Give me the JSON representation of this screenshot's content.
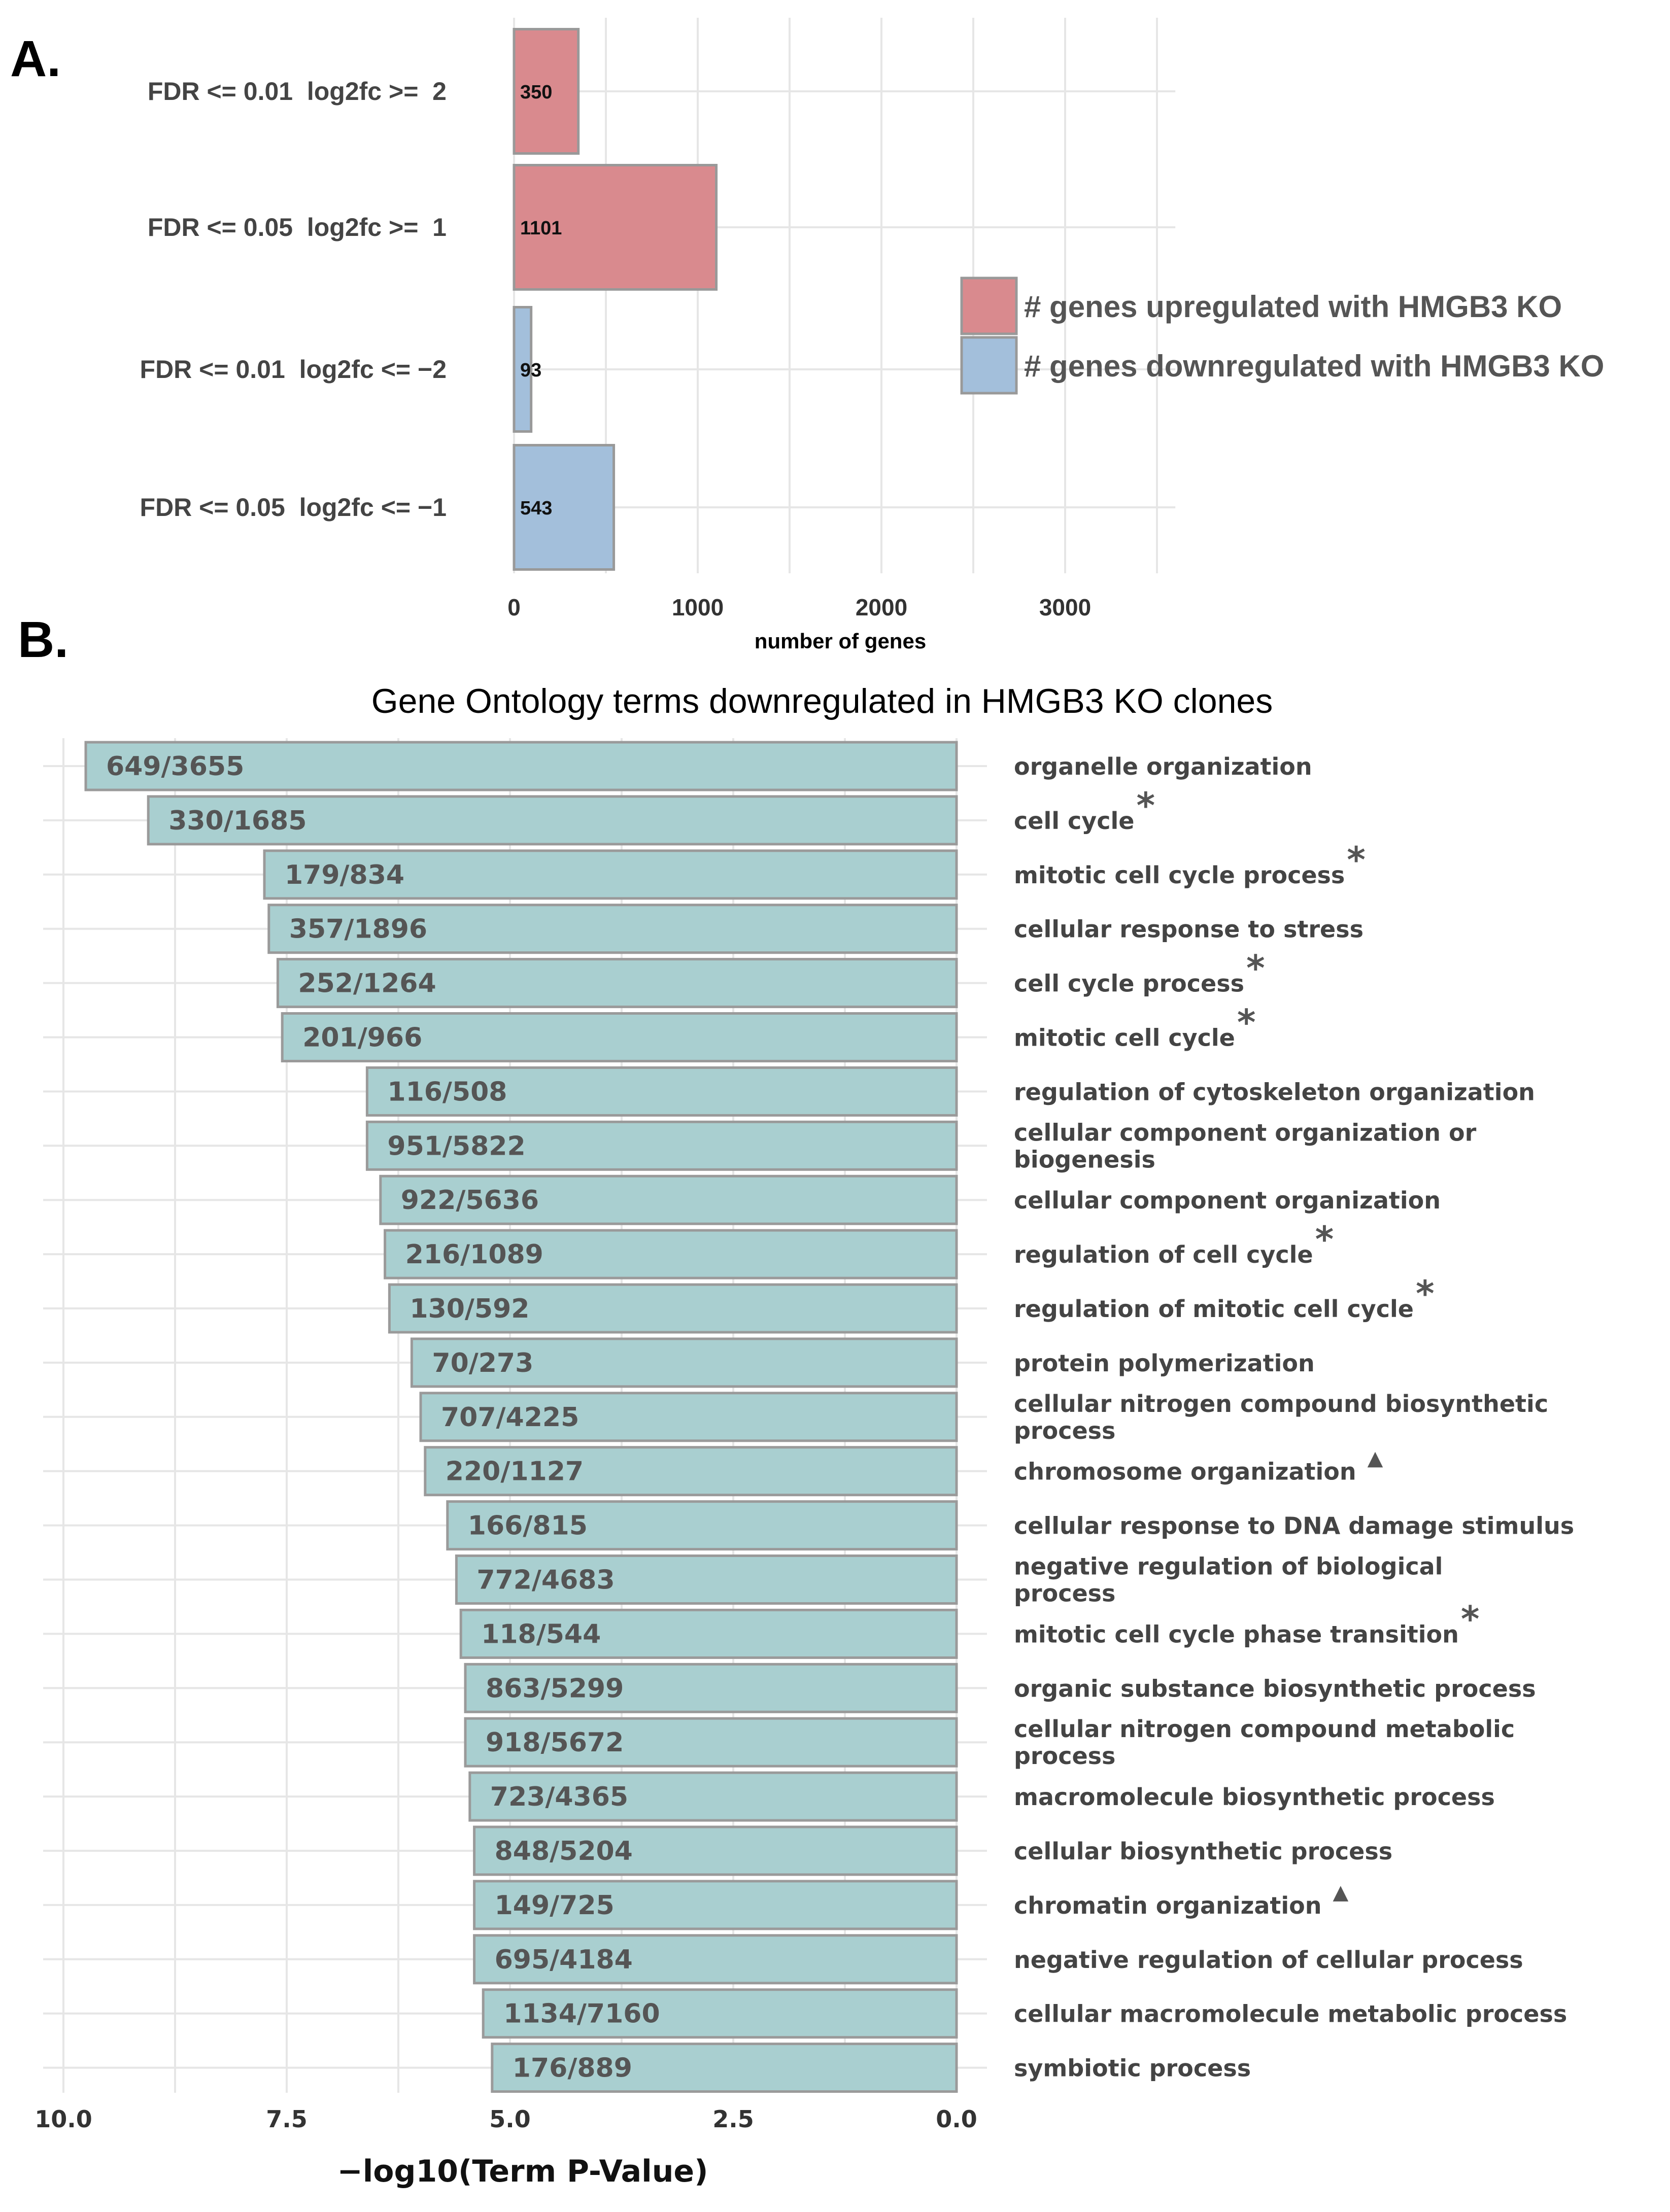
{
  "chart_data": [
    {
      "panel": "A.",
      "type": "bar",
      "orientation": "horizontal",
      "categories": [
        "FDR <= 0.01  log2fc >=  2",
        "FDR <= 0.05  log2fc >=  1",
        "FDR <= 0.01  log2fc <= −2",
        "FDR <= 0.05  log2fc <= −1"
      ],
      "values": [
        350,
        1101,
        93,
        543
      ],
      "bar_labels": [
        "350",
        "1101",
        "93",
        "543"
      ],
      "groups": [
        "up",
        "up",
        "down",
        "down"
      ],
      "xlabel": "number of genes",
      "xlim": [
        0,
        3600
      ],
      "xticks": [
        0,
        1000,
        2000,
        3000
      ],
      "xtick_labels": [
        "0",
        "1000",
        "2000",
        "3000"
      ],
      "legend": {
        "position": "right",
        "entries": [
          {
            "key": "up",
            "label": "# genes upregulated with HMGB3 KO",
            "color": "#d98a8e"
          },
          {
            "key": "down",
            "label": "# genes downregulated with HMGB3 KO",
            "color": "#a3bfdb"
          }
        ]
      }
    },
    {
      "panel": "B.",
      "type": "bar",
      "orientation": "horizontal",
      "title": "Gene Ontology terms downregulated in HMGB3 KO clones",
      "xlabel": "−log10(Term P-Value)",
      "xlim": [
        10.0,
        0.0
      ],
      "x_reversed": true,
      "xticks": [
        10.0,
        7.5,
        5.0,
        2.5,
        0.0
      ],
      "xtick_labels": [
        "10.0",
        "7.5",
        "5.0",
        "2.5",
        "0.0"
      ],
      "bar_color": "#a9cfd0",
      "marker_legend": {
        "star": "*",
        "triangle": "▲"
      },
      "terms": [
        {
          "label": [
            "organelle organization"
          ],
          "value": 9.75,
          "bar_label": "649/3655",
          "marker": ""
        },
        {
          "label": [
            "cell cycle"
          ],
          "value": 9.05,
          "bar_label": "330/1685",
          "marker": "*"
        },
        {
          "label": [
            "mitotic cell cycle process"
          ],
          "value": 7.75,
          "bar_label": "179/834",
          "marker": "*"
        },
        {
          "label": [
            "cellular response to stress"
          ],
          "value": 7.7,
          "bar_label": "357/1896",
          "marker": ""
        },
        {
          "label": [
            "cell cycle process"
          ],
          "value": 7.6,
          "bar_label": "252/1264",
          "marker": "*"
        },
        {
          "label": [
            "mitotic cell cycle"
          ],
          "value": 7.55,
          "bar_label": "201/966",
          "marker": "*"
        },
        {
          "label": [
            "regulation of cytoskeleton organization"
          ],
          "value": 6.6,
          "bar_label": "116/508",
          "marker": ""
        },
        {
          "label": [
            "cellular component organization or",
            "biogenesis"
          ],
          "value": 6.6,
          "bar_label": "951/5822",
          "marker": ""
        },
        {
          "label": [
            "cellular component organization"
          ],
          "value": 6.45,
          "bar_label": "922/5636",
          "marker": ""
        },
        {
          "label": [
            "regulation of cell cycle"
          ],
          "value": 6.4,
          "bar_label": "216/1089",
          "marker": "*"
        },
        {
          "label": [
            "regulation of mitotic cell cycle"
          ],
          "value": 6.35,
          "bar_label": "130/592",
          "marker": "*"
        },
        {
          "label": [
            "protein polymerization"
          ],
          "value": 6.1,
          "bar_label": "70/273",
          "marker": ""
        },
        {
          "label": [
            "cellular nitrogen compound biosynthetic",
            "process"
          ],
          "value": 6.0,
          "bar_label": "707/4225",
          "marker": ""
        },
        {
          "label": [
            "chromosome organization"
          ],
          "value": 5.95,
          "bar_label": "220/1127",
          "marker": "▲"
        },
        {
          "label": [
            "cellular response to DNA damage stimulus"
          ],
          "value": 5.7,
          "bar_label": "166/815",
          "marker": ""
        },
        {
          "label": [
            "negative regulation of biological",
            "process"
          ],
          "value": 5.6,
          "bar_label": "772/4683",
          "marker": ""
        },
        {
          "label": [
            "mitotic cell cycle phase transition"
          ],
          "value": 5.55,
          "bar_label": "118/544",
          "marker": "*"
        },
        {
          "label": [
            "organic substance biosynthetic process"
          ],
          "value": 5.5,
          "bar_label": "863/5299",
          "marker": ""
        },
        {
          "label": [
            "cellular nitrogen compound metabolic",
            "process"
          ],
          "value": 5.5,
          "bar_label": "918/5672",
          "marker": ""
        },
        {
          "label": [
            "macromolecule biosynthetic process"
          ],
          "value": 5.45,
          "bar_label": "723/4365",
          "marker": ""
        },
        {
          "label": [
            "cellular biosynthetic process"
          ],
          "value": 5.4,
          "bar_label": "848/5204",
          "marker": ""
        },
        {
          "label": [
            "chromatin organization"
          ],
          "value": 5.4,
          "bar_label": "149/725",
          "marker": "▲"
        },
        {
          "label": [
            "negative regulation of cellular process"
          ],
          "value": 5.4,
          "bar_label": "695/4184",
          "marker": ""
        },
        {
          "label": [
            "cellular macromolecule metabolic process"
          ],
          "value": 5.3,
          "bar_label": "1134/7160",
          "marker": ""
        },
        {
          "label": [
            "symbiotic process"
          ],
          "value": 5.2,
          "bar_label": "176/889",
          "marker": ""
        }
      ]
    }
  ]
}
